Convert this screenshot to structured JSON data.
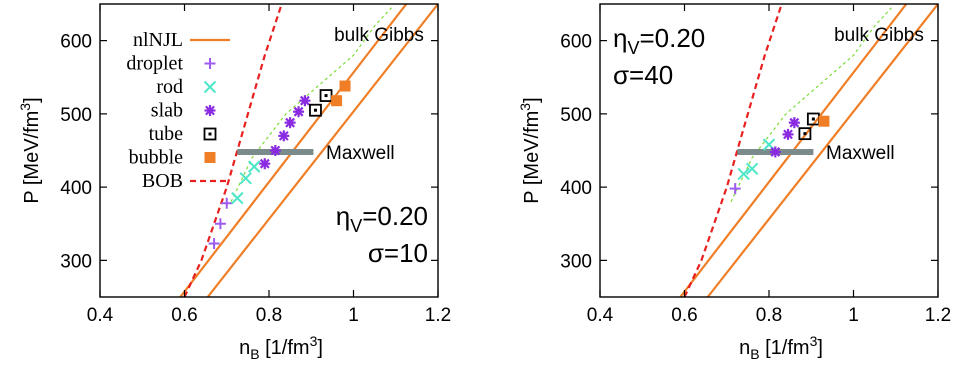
{
  "chart_data": [
    {
      "type": "line",
      "xlabel": "n_B [1/fm^3]",
      "ylabel": "P [MeV/fm^3]",
      "xlim": [
        0.4,
        1.2
      ],
      "ylim": [
        250,
        650
      ],
      "xticks": [
        0.4,
        0.6,
        0.8,
        1,
        1.2
      ],
      "xtick_labels": [
        "0.4",
        "0.6",
        "0.8",
        "1",
        "1.2"
      ],
      "yticks": [
        300,
        400,
        500,
        600
      ],
      "ytick_labels": [
        "300",
        "400",
        "500",
        "600"
      ],
      "grid": false,
      "legend_position": "top-left",
      "params": {
        "eta_label": "η",
        "eta_sub": "V",
        "eta_value": "=0.20",
        "sigma_label": "σ=10"
      },
      "annotations": {
        "bulk_gibbs": "bulk Gibbs",
        "maxwell": "Maxwell"
      },
      "series": [
        {
          "name": "nlNJL",
          "style": "solid-line",
          "color": "#f07e26",
          "points": [
            [
              0.59,
              250
            ],
            [
              1.125,
              650
            ]
          ]
        },
        {
          "name": "nlNJL",
          "style": "solid-line",
          "color": "#f07e26",
          "points": [
            [
              0.655,
              250
            ],
            [
              1.2,
              650
            ]
          ]
        },
        {
          "name": "BOB",
          "style": "dashed-line",
          "color": "#e8201f",
          "points": [
            [
              0.6,
              250
            ],
            [
              0.64,
              300
            ],
            [
              0.7,
              400
            ],
            [
              0.74,
              480
            ],
            [
              0.79,
              580
            ],
            [
              0.83,
              650
            ]
          ]
        },
        {
          "name": "bulk Gibbs",
          "style": "dotted-line",
          "color": "#7ddc3a",
          "points": [
            [
              0.71,
              380
            ],
            [
              0.76,
              440
            ],
            [
              0.84,
              500
            ],
            [
              0.92,
              540
            ],
            [
              1.0,
              580
            ],
            [
              1.05,
              620
            ],
            [
              1.09,
              645
            ]
          ]
        },
        {
          "name": "Maxwell",
          "style": "thick-line",
          "color": "#7b8a8b",
          "points": [
            [
              0.725,
              448
            ],
            [
              0.905,
              448
            ]
          ]
        },
        {
          "name": "droplet",
          "style": "plus",
          "color": "#9e5bf0",
          "points": [
            [
              0.67,
              323
            ],
            [
              0.685,
              350
            ],
            [
              0.7,
              378
            ]
          ]
        },
        {
          "name": "rod",
          "style": "cross",
          "color": "#4ee6c8",
          "points": [
            [
              0.725,
              385
            ],
            [
              0.745,
              412
            ],
            [
              0.765,
              428
            ]
          ]
        },
        {
          "name": "slab",
          "style": "star",
          "color": "#8a2be2",
          "points": [
            [
              0.79,
              432
            ],
            [
              0.815,
              450
            ],
            [
              0.835,
              470
            ],
            [
              0.85,
              488
            ],
            [
              0.87,
              503
            ],
            [
              0.885,
              518
            ]
          ]
        },
        {
          "name": "tube",
          "style": "open-square",
          "color": "#000000",
          "points": [
            [
              0.91,
              505
            ],
            [
              0.935,
              525
            ]
          ]
        },
        {
          "name": "bubble",
          "style": "filled-square",
          "color": "#f07e26",
          "points": [
            [
              0.96,
              518
            ],
            [
              0.98,
              538
            ]
          ]
        }
      ]
    },
    {
      "type": "line",
      "xlabel": "n_B [1/fm^3]",
      "ylabel": "P [MeV/fm^3]",
      "xlim": [
        0.4,
        1.2
      ],
      "ylim": [
        250,
        650
      ],
      "xticks": [
        0.4,
        0.6,
        0.8,
        1,
        1.2
      ],
      "xtick_labels": [
        "0.4",
        "0.6",
        "0.8",
        "1",
        "1.2"
      ],
      "yticks": [
        300,
        400,
        500,
        600
      ],
      "ytick_labels": [
        "300",
        "400",
        "500",
        "600"
      ],
      "grid": false,
      "params": {
        "eta_label": "η",
        "eta_sub": "V",
        "eta_value": "=0.20",
        "sigma_label": "σ=40"
      },
      "annotations": {
        "bulk_gibbs": "bulk Gibbs",
        "maxwell": "Maxwell"
      },
      "series": [
        {
          "name": "nlNJL",
          "style": "solid-line",
          "color": "#f07e26",
          "points": [
            [
              0.59,
              250
            ],
            [
              1.125,
              650
            ]
          ]
        },
        {
          "name": "nlNJL",
          "style": "solid-line",
          "color": "#f07e26",
          "points": [
            [
              0.655,
              250
            ],
            [
              1.2,
              650
            ]
          ]
        },
        {
          "name": "BOB",
          "style": "dashed-line",
          "color": "#e8201f",
          "points": [
            [
              0.6,
              250
            ],
            [
              0.64,
              300
            ],
            [
              0.7,
              400
            ],
            [
              0.74,
              480
            ],
            [
              0.79,
              580
            ],
            [
              0.83,
              650
            ]
          ]
        },
        {
          "name": "bulk Gibbs",
          "style": "dotted-line",
          "color": "#7ddc3a",
          "points": [
            [
              0.71,
              380
            ],
            [
              0.76,
              440
            ],
            [
              0.84,
              500
            ],
            [
              0.92,
              540
            ],
            [
              1.0,
              580
            ],
            [
              1.05,
              620
            ],
            [
              1.09,
              645
            ]
          ]
        },
        {
          "name": "Maxwell",
          "style": "thick-line",
          "color": "#7b8a8b",
          "points": [
            [
              0.725,
              448
            ],
            [
              0.905,
              448
            ]
          ]
        },
        {
          "name": "droplet",
          "style": "plus",
          "color": "#9e5bf0",
          "points": [
            [
              0.72,
              398
            ]
          ]
        },
        {
          "name": "rod",
          "style": "cross",
          "color": "#4ee6c8",
          "points": [
            [
              0.74,
              418
            ],
            [
              0.76,
              425
            ],
            [
              0.8,
              458
            ]
          ]
        },
        {
          "name": "slab",
          "style": "star",
          "color": "#8a2be2",
          "points": [
            [
              0.815,
              448
            ],
            [
              0.845,
              472
            ],
            [
              0.86,
              488
            ]
          ]
        },
        {
          "name": "tube",
          "style": "open-square",
          "color": "#000000",
          "points": [
            [
              0.885,
              473
            ],
            [
              0.905,
              493
            ]
          ]
        },
        {
          "name": "bubble",
          "style": "filled-square",
          "color": "#f07e26",
          "points": [
            [
              0.93,
              490
            ]
          ]
        }
      ]
    }
  ],
  "legend": [
    {
      "label": "nlNJL",
      "style": "solid-line",
      "color": "#f07e26"
    },
    {
      "label": "droplet",
      "style": "plus",
      "color": "#9e5bf0"
    },
    {
      "label": "rod",
      "style": "cross",
      "color": "#4ee6c8"
    },
    {
      "label": "slab",
      "style": "star",
      "color": "#8a2be2"
    },
    {
      "label": "tube",
      "style": "open-square",
      "color": "#000000"
    },
    {
      "label": "bubble",
      "style": "filled-square",
      "color": "#f07e26"
    },
    {
      "label": "BOB",
      "style": "dashed-line",
      "color": "#e8201f"
    }
  ]
}
